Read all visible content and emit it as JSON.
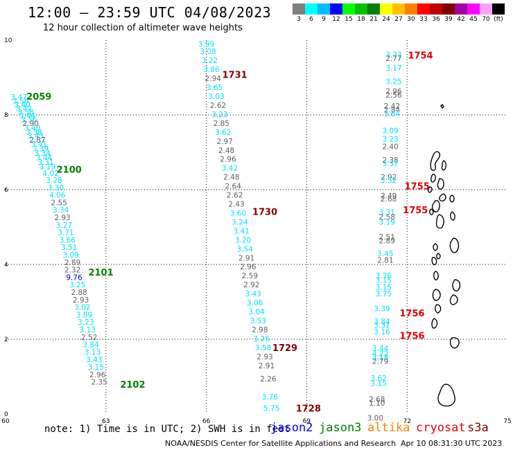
{
  "header": {
    "title": "12:00 – 23:59 UTC 04/08/2023",
    "subtitle": "12 hour collection of altimeter wave heights"
  },
  "legend": {
    "unit": "(ft)",
    "bins": [
      {
        "label": "3",
        "color": "#7f7f7f"
      },
      {
        "label": "6",
        "color": "#00ffff"
      },
      {
        "label": "9",
        "color": "#00bfff"
      },
      {
        "label": "12",
        "color": "#0000ff"
      },
      {
        "label": "15",
        "color": "#00ff00"
      },
      {
        "label": "18",
        "color": "#00c000"
      },
      {
        "label": "21",
        "color": "#008000"
      },
      {
        "label": "24",
        "color": "#ffff00"
      },
      {
        "label": "27",
        "color": "#ffc000"
      },
      {
        "label": "30",
        "color": "#ff8000"
      },
      {
        "label": "33",
        "color": "#ff0000"
      },
      {
        "label": "36",
        "color": "#c00000"
      },
      {
        "label": "39",
        "color": "#800000"
      },
      {
        "label": "42",
        "color": "#a000a0"
      },
      {
        "label": "45",
        "color": "#ff00ff"
      },
      {
        "label": "70",
        "color": "#ffa0ff"
      },
      {
        "label": "",
        "color": "#000000"
      }
    ]
  },
  "axes": {
    "x_ticks": [
      "60",
      "63",
      "66",
      "69",
      "72",
      "75"
    ],
    "y_ticks": [
      "0",
      "2",
      "4",
      "6",
      "8",
      "10"
    ],
    "xlim": [
      60,
      75
    ],
    "ylim": [
      0,
      10
    ]
  },
  "tracks": [
    {
      "name": "track-far-west",
      "points": [
        {
          "lon": 60.4,
          "lat": 8.48,
          "v": "3.47",
          "c": "#00e0ff"
        },
        {
          "lon": 60.45,
          "lat": 8.38,
          "v": "3.56",
          "c": "#00e0ff"
        },
        {
          "lon": 60.5,
          "lat": 8.28,
          "v": "3.40",
          "c": "#00e0ff"
        },
        {
          "lon": 60.55,
          "lat": 8.18,
          "v": "3.42",
          "c": "#00e0ff"
        },
        {
          "lon": 60.6,
          "lat": 8.08,
          "v": "3.58",
          "c": "#00e0ff"
        },
        {
          "lon": 60.65,
          "lat": 7.98,
          "v": "3.44",
          "c": "#00e0ff"
        },
        {
          "lon": 60.7,
          "lat": 7.88,
          "v": "3.36",
          "c": "#00e0ff"
        },
        {
          "lon": 60.75,
          "lat": 7.78,
          "v": "2.90",
          "c": "#606060"
        },
        {
          "lon": 60.8,
          "lat": 7.66,
          "v": "3.40",
          "c": "#00e0ff"
        },
        {
          "lon": 60.85,
          "lat": 7.55,
          "v": "3.38",
          "c": "#00e0ff"
        },
        {
          "lon": 60.9,
          "lat": 7.44,
          "v": "3.43",
          "c": "#00e0ff"
        },
        {
          "lon": 60.95,
          "lat": 7.33,
          "v": "2.87",
          "c": "#606060"
        },
        {
          "lon": 61.0,
          "lat": 7.22,
          "v": "3.41",
          "c": "#00e0ff"
        },
        {
          "lon": 61.05,
          "lat": 7.1,
          "v": "3.39",
          "c": "#00e0ff"
        },
        {
          "lon": 61.1,
          "lat": 6.98,
          "v": "3.34",
          "c": "#00e0ff"
        },
        {
          "lon": 61.15,
          "lat": 6.86,
          "v": "3.44",
          "c": "#00e0ff"
        },
        {
          "lon": 61.2,
          "lat": 6.74,
          "v": "3.31",
          "c": "#00e0ff"
        },
        {
          "lon": 61.25,
          "lat": 6.62,
          "v": "3.19",
          "c": "#00e0ff"
        },
        {
          "lon": 61.35,
          "lat": 6.44,
          "v": "4.02",
          "c": "#00e0ff"
        },
        {
          "lon": 61.45,
          "lat": 6.26,
          "v": "3.28",
          "c": "#00e0ff"
        },
        {
          "lon": 61.5,
          "lat": 6.06,
          "v": "3.30",
          "c": "#00e0ff"
        },
        {
          "lon": 61.55,
          "lat": 5.86,
          "v": "4.06",
          "c": "#00e0ff"
        },
        {
          "lon": 61.6,
          "lat": 5.66,
          "v": "2.55",
          "c": "#606060"
        },
        {
          "lon": 61.65,
          "lat": 5.46,
          "v": "3.34",
          "c": "#00e0ff"
        },
        {
          "lon": 61.7,
          "lat": 5.26,
          "v": "2.93",
          "c": "#606060"
        },
        {
          "lon": 61.75,
          "lat": 5.06,
          "v": "3.27",
          "c": "#00e0ff"
        },
        {
          "lon": 61.8,
          "lat": 4.86,
          "v": "3.71",
          "c": "#00e0ff"
        },
        {
          "lon": 61.85,
          "lat": 4.66,
          "v": "3.66",
          "c": "#00e0ff"
        },
        {
          "lon": 61.9,
          "lat": 4.46,
          "v": "3.51",
          "c": "#00e0ff"
        },
        {
          "lon": 61.95,
          "lat": 4.26,
          "v": "3.09",
          "c": "#00e0ff"
        },
        {
          "lon": 62.0,
          "lat": 4.06,
          "v": "2.89",
          "c": "#606060"
        },
        {
          "lon": 62.0,
          "lat": 3.86,
          "v": "2.32",
          "c": "#606060"
        },
        {
          "lon": 62.05,
          "lat": 3.66,
          "v": "9.76",
          "c": "#0000c0"
        },
        {
          "lon": 62.15,
          "lat": 3.46,
          "v": "3.25",
          "c": "#00e0ff"
        },
        {
          "lon": 62.2,
          "lat": 3.26,
          "v": "2.88",
          "c": "#606060"
        },
        {
          "lon": 62.25,
          "lat": 3.06,
          "v": "2.93",
          "c": "#606060"
        },
        {
          "lon": 62.3,
          "lat": 2.86,
          "v": "3.02",
          "c": "#00e0ff"
        },
        {
          "lon": 62.35,
          "lat": 2.66,
          "v": "3.89",
          "c": "#00e0ff"
        },
        {
          "lon": 62.4,
          "lat": 2.46,
          "v": "3.23",
          "c": "#00e0ff"
        },
        {
          "lon": 62.45,
          "lat": 2.26,
          "v": "3.13",
          "c": "#00e0ff"
        },
        {
          "lon": 62.5,
          "lat": 2.06,
          "v": "2.52",
          "c": "#606060"
        },
        {
          "lon": 62.55,
          "lat": 1.86,
          "v": "3.84",
          "c": "#00e0ff"
        },
        {
          "lon": 62.6,
          "lat": 1.66,
          "v": "3.13",
          "c": "#00e0ff"
        },
        {
          "lon": 62.65,
          "lat": 1.46,
          "v": "3.43",
          "c": "#00e0ff"
        },
        {
          "lon": 62.7,
          "lat": 1.26,
          "v": "3.15",
          "c": "#00e0ff"
        },
        {
          "lon": 62.75,
          "lat": 1.06,
          "v": "2.96",
          "c": "#606060"
        },
        {
          "lon": 62.8,
          "lat": 0.86,
          "v": "2.35",
          "c": "#606060"
        }
      ]
    },
    {
      "name": "track-middle",
      "points": [
        {
          "lon": 66.0,
          "lat": 9.9,
          "v": "3.99",
          "c": "#00e0ff"
        },
        {
          "lon": 66.05,
          "lat": 9.7,
          "v": "3.08",
          "c": "#00e0ff"
        },
        {
          "lon": 66.1,
          "lat": 9.46,
          "v": "3.22",
          "c": "#00e0ff"
        },
        {
          "lon": 66.15,
          "lat": 9.22,
          "v": "3.86",
          "c": "#00e0ff"
        },
        {
          "lon": 66.2,
          "lat": 8.98,
          "v": "2.94",
          "c": "#606060"
        },
        {
          "lon": 66.25,
          "lat": 8.74,
          "v": "3.65",
          "c": "#00e0ff"
        },
        {
          "lon": 66.3,
          "lat": 8.5,
          "v": "3.03",
          "c": "#00e0ff"
        },
        {
          "lon": 66.35,
          "lat": 8.26,
          "v": "2.62",
          "c": "#606060"
        },
        {
          "lon": 66.4,
          "lat": 8.02,
          "v": "3.23",
          "c": "#00e0ff"
        },
        {
          "lon": 66.45,
          "lat": 7.78,
          "v": "2.85",
          "c": "#606060"
        },
        {
          "lon": 66.5,
          "lat": 7.54,
          "v": "3.62",
          "c": "#00e0ff"
        },
        {
          "lon": 66.55,
          "lat": 7.3,
          "v": "2.97",
          "c": "#606060"
        },
        {
          "lon": 66.6,
          "lat": 7.06,
          "v": "2.48",
          "c": "#606060"
        },
        {
          "lon": 66.65,
          "lat": 6.82,
          "v": "2.96",
          "c": "#606060"
        },
        {
          "lon": 66.7,
          "lat": 6.58,
          "v": "3.42",
          "c": "#00e0ff"
        },
        {
          "lon": 66.75,
          "lat": 6.34,
          "v": "2.48",
          "c": "#606060"
        },
        {
          "lon": 66.8,
          "lat": 6.1,
          "v": "2.64",
          "c": "#606060"
        },
        {
          "lon": 66.85,
          "lat": 5.86,
          "v": "2.62",
          "c": "#606060"
        },
        {
          "lon": 66.9,
          "lat": 5.62,
          "v": "2.43",
          "c": "#606060"
        },
        {
          "lon": 66.95,
          "lat": 5.38,
          "v": "3.60",
          "c": "#00e0ff"
        },
        {
          "lon": 67.0,
          "lat": 5.14,
          "v": "3.24",
          "c": "#00e0ff"
        },
        {
          "lon": 67.05,
          "lat": 4.9,
          "v": "3.41",
          "c": "#00e0ff"
        },
        {
          "lon": 67.1,
          "lat": 4.66,
          "v": "3.20",
          "c": "#00e0ff"
        },
        {
          "lon": 67.15,
          "lat": 4.42,
          "v": "3.54",
          "c": "#00e0ff"
        },
        {
          "lon": 67.2,
          "lat": 4.18,
          "v": "2.91",
          "c": "#606060"
        },
        {
          "lon": 67.25,
          "lat": 3.94,
          "v": "2.96",
          "c": "#606060"
        },
        {
          "lon": 67.3,
          "lat": 3.7,
          "v": "2.59",
          "c": "#606060"
        },
        {
          "lon": 67.35,
          "lat": 3.46,
          "v": "2.92",
          "c": "#606060"
        },
        {
          "lon": 67.4,
          "lat": 3.22,
          "v": "3.43",
          "c": "#00e0ff"
        },
        {
          "lon": 67.45,
          "lat": 2.98,
          "v": "3.06",
          "c": "#00e0ff"
        },
        {
          "lon": 67.5,
          "lat": 2.74,
          "v": "3.04",
          "c": "#00e0ff"
        },
        {
          "lon": 67.55,
          "lat": 2.5,
          "v": "3.53",
          "c": "#00e0ff"
        },
        {
          "lon": 67.6,
          "lat": 2.26,
          "v": "2.98",
          "c": "#606060"
        },
        {
          "lon": 67.65,
          "lat": 2.02,
          "v": "3.25",
          "c": "#00e0ff"
        },
        {
          "lon": 67.7,
          "lat": 1.78,
          "v": "3.58",
          "c": "#00e0ff"
        },
        {
          "lon": 67.75,
          "lat": 1.54,
          "v": "2.93",
          "c": "#606060"
        },
        {
          "lon": 67.8,
          "lat": 1.3,
          "v": "2.91",
          "c": "#606060"
        },
        {
          "lon": 67.85,
          "lat": 0.94,
          "v": "2.26",
          "c": "#606060"
        },
        {
          "lon": 67.9,
          "lat": 0.46,
          "v": "3.76",
          "c": "#00e0ff"
        },
        {
          "lon": 67.95,
          "lat": 0.16,
          "v": "5.75",
          "c": "#00e0ff"
        }
      ]
    },
    {
      "name": "track-east",
      "points": [
        {
          "lon": 71.6,
          "lat": 9.62,
          "v": "3.33",
          "c": "#00e0ff"
        },
        {
          "lon": 71.6,
          "lat": 9.52,
          "v": "2.77",
          "c": "#606060"
        },
        {
          "lon": 71.6,
          "lat": 9.26,
          "v": "3.17",
          "c": "#00e0ff"
        },
        {
          "lon": 71.6,
          "lat": 8.9,
          "v": "3.25",
          "c": "#00e0ff"
        },
        {
          "lon": 71.6,
          "lat": 8.64,
          "v": "2.96",
          "c": "#606060"
        },
        {
          "lon": 71.6,
          "lat": 8.54,
          "v": "2.56",
          "c": "#606060"
        },
        {
          "lon": 71.55,
          "lat": 8.24,
          "v": "2.42",
          "c": "#606060"
        },
        {
          "lon": 71.55,
          "lat": 8.14,
          "v": "2.84",
          "c": "#606060"
        },
        {
          "lon": 71.55,
          "lat": 8.04,
          "v": "3.64",
          "c": "#00e0ff"
        },
        {
          "lon": 71.5,
          "lat": 7.58,
          "v": "3.09",
          "c": "#00e0ff"
        },
        {
          "lon": 71.5,
          "lat": 7.36,
          "v": "3.23",
          "c": "#00e0ff"
        },
        {
          "lon": 71.5,
          "lat": 7.16,
          "v": "2.40",
          "c": "#606060"
        },
        {
          "lon": 71.5,
          "lat": 6.8,
          "v": "2.38",
          "c": "#606060"
        },
        {
          "lon": 71.5,
          "lat": 6.7,
          "v": "3.37",
          "c": "#00e0ff"
        },
        {
          "lon": 71.45,
          "lat": 6.34,
          "v": "2.92",
          "c": "#606060"
        },
        {
          "lon": 71.45,
          "lat": 6.26,
          "v": "3.52",
          "c": "#00e0ff"
        },
        {
          "lon": 71.45,
          "lat": 5.84,
          "v": "2.49",
          "c": "#606060"
        },
        {
          "lon": 71.45,
          "lat": 5.76,
          "v": "2.68",
          "c": "#606060"
        },
        {
          "lon": 71.4,
          "lat": 5.4,
          "v": "3.31",
          "c": "#00e0ff"
        },
        {
          "lon": 71.4,
          "lat": 5.28,
          "v": "2.58",
          "c": "#606060"
        },
        {
          "lon": 71.4,
          "lat": 5.14,
          "v": "3.19",
          "c": "#00e0ff"
        },
        {
          "lon": 71.4,
          "lat": 4.74,
          "v": "2.51",
          "c": "#606060"
        },
        {
          "lon": 71.4,
          "lat": 4.64,
          "v": "2.89",
          "c": "#606060"
        },
        {
          "lon": 71.35,
          "lat": 4.3,
          "v": "3.45",
          "c": "#00e0ff"
        },
        {
          "lon": 71.35,
          "lat": 4.12,
          "v": "2.81",
          "c": "#606060"
        },
        {
          "lon": 71.3,
          "lat": 3.7,
          "v": "3.76",
          "c": "#00e0ff"
        },
        {
          "lon": 71.3,
          "lat": 3.58,
          "v": "3.15",
          "c": "#00e0ff"
        },
        {
          "lon": 71.3,
          "lat": 3.4,
          "v": "3.15",
          "c": "#00e0ff"
        },
        {
          "lon": 71.3,
          "lat": 3.22,
          "v": "3.75",
          "c": "#00e0ff"
        },
        {
          "lon": 71.25,
          "lat": 2.82,
          "v": "3.39",
          "c": "#00e0ff"
        },
        {
          "lon": 71.25,
          "lat": 2.48,
          "v": "3.84",
          "c": "#00e0ff"
        },
        {
          "lon": 71.25,
          "lat": 2.38,
          "v": "3.31",
          "c": "#00e0ff"
        },
        {
          "lon": 71.25,
          "lat": 2.2,
          "v": "3.16",
          "c": "#00e0ff"
        },
        {
          "lon": 71.2,
          "lat": 1.76,
          "v": "3.44",
          "c": "#00e0ff"
        },
        {
          "lon": 71.2,
          "lat": 1.62,
          "v": "4.22",
          "c": "#00e0ff"
        },
        {
          "lon": 71.2,
          "lat": 1.52,
          "v": "3.18",
          "c": "#00e0ff"
        },
        {
          "lon": 71.2,
          "lat": 1.42,
          "v": "2.79",
          "c": "#606060"
        },
        {
          "lon": 71.15,
          "lat": 0.96,
          "v": "3.62",
          "c": "#00e0ff"
        },
        {
          "lon": 71.15,
          "lat": 0.82,
          "v": "3.15",
          "c": "#00e0ff"
        },
        {
          "lon": 71.1,
          "lat": 0.4,
          "v": "2.68",
          "c": "#606060"
        },
        {
          "lon": 71.1,
          "lat": 0.3,
          "v": "1.10",
          "c": "#606060"
        },
        {
          "lon": 71.05,
          "lat": -0.1,
          "v": "3.00",
          "c": "#606060"
        }
      ]
    }
  ],
  "time_labels": [
    {
      "lon": 61.0,
      "lat": 8.5,
      "t": "2059",
      "c": "#008000"
    },
    {
      "lon": 61.9,
      "lat": 6.55,
      "t": "2100",
      "c": "#008000"
    },
    {
      "lon": 62.85,
      "lat": 3.8,
      "t": "2101",
      "c": "#008000"
    },
    {
      "lon": 63.8,
      "lat": 0.8,
      "t": "2102",
      "c": "#008000"
    },
    {
      "lon": 66.85,
      "lat": 9.08,
      "t": "1731",
      "c": "#800000"
    },
    {
      "lon": 67.75,
      "lat": 5.42,
      "t": "1730",
      "c": "#800000"
    },
    {
      "lon": 68.35,
      "lat": 1.78,
      "t": "1729",
      "c": "#800000"
    },
    {
      "lon": 69.05,
      "lat": 0.16,
      "t": "1728",
      "c": "#800000"
    },
    {
      "lon": 72.4,
      "lat": 9.6,
      "t": "1754",
      "c": "#e00000"
    },
    {
      "lon": 72.3,
      "lat": 6.1,
      "t": "1755",
      "c": "#e00000"
    },
    {
      "lon": 72.25,
      "lat": 5.46,
      "t": "1755",
      "c": "#e00000"
    },
    {
      "lon": 72.15,
      "lat": 2.7,
      "t": "1756",
      "c": "#e00000"
    },
    {
      "lon": 72.15,
      "lat": 2.1,
      "t": "1756",
      "c": "#e00000"
    }
  ],
  "footer": {
    "note": "note:  1) Time is in UTC; 2) SWH is in feet",
    "satellites": [
      {
        "name": "jason2",
        "color": "#0000ff"
      },
      {
        "name": "jason3",
        "color": "#008000"
      },
      {
        "name": "altika",
        "color": "#ff8000"
      },
      {
        "name": "cryosat",
        "color": "#e00000"
      },
      {
        "name": "s3a",
        "color": "#800000"
      }
    ],
    "credit": "NOAA/NESDIS Center for Satellite Applications and Research",
    "issued": "Apr 10 08:31:30 UTC 2023"
  }
}
